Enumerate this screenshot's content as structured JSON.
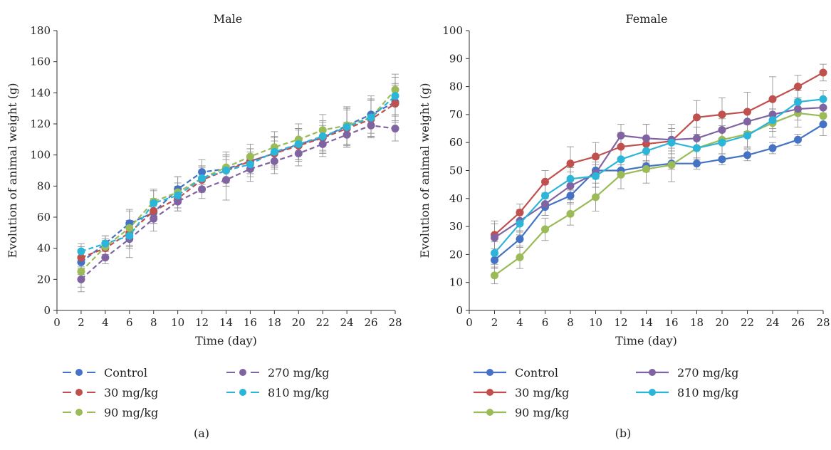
{
  "colors": {
    "Control": "#4472c4",
    "30 mg/kg": "#c0504d",
    "90 mg/kg": "#9bbb59",
    "270 mg/kg": "#8064a2",
    "810 mg/kg": "#2bb5d8"
  },
  "chart_data": [
    {
      "type": "line",
      "title": "Male",
      "xlabel": "Time (day)",
      "ylabel": "Evolution of animal weight (g)",
      "xlim": [
        0,
        28
      ],
      "ylim": [
        0,
        180
      ],
      "xticks": [
        0,
        2,
        4,
        6,
        8,
        10,
        12,
        14,
        16,
        18,
        20,
        22,
        24,
        26,
        28
      ],
      "yticks": [
        0,
        20,
        40,
        60,
        80,
        100,
        120,
        140,
        160,
        180
      ],
      "line_style": "dashed",
      "error_bars": true,
      "legend_position": "bottom",
      "panel_label": "(a)",
      "x": [
        2,
        4,
        6,
        8,
        10,
        12,
        14,
        16,
        18,
        20,
        22,
        24,
        26,
        28
      ],
      "series": [
        {
          "name": "Control",
          "values": [
            31,
            43,
            56,
            63,
            78,
            89,
            91,
            96,
            101,
            107,
            111,
            119,
            126,
            134
          ],
          "errors": [
            8,
            5,
            8,
            7,
            8,
            8,
            8,
            8,
            8,
            10,
            8,
            12,
            12,
            12
          ]
        },
        {
          "name": "30 mg/kg",
          "values": [
            34,
            40,
            50,
            64,
            72,
            84,
            90,
            96,
            101,
            106,
            111,
            117,
            123,
            133
          ],
          "errors": [
            7,
            5,
            8,
            8,
            8,
            8,
            10,
            8,
            10,
            10,
            10,
            12,
            12,
            12
          ]
        },
        {
          "name": "90 mg/kg",
          "values": [
            25,
            41,
            53,
            70,
            76,
            85,
            92,
            99,
            105,
            110,
            116,
            119,
            124,
            142
          ],
          "errors": [
            10,
            5,
            12,
            8,
            10,
            8,
            10,
            8,
            10,
            10,
            10,
            12,
            12,
            10
          ]
        },
        {
          "name": "270 mg/kg",
          "values": [
            20,
            34,
            46,
            59,
            70,
            78,
            84,
            91,
            96,
            101,
            107,
            113,
            119,
            117
          ],
          "errors": [
            8,
            4,
            12,
            8,
            6,
            6,
            13,
            8,
            8,
            8,
            8,
            8,
            8,
            8
          ]
        },
        {
          "name": "810 mg/kg",
          "values": [
            38,
            43,
            48,
            69,
            74,
            85,
            90,
            94,
            102,
            107,
            112,
            118,
            124,
            138
          ],
          "errors": [
            5,
            5,
            8,
            8,
            8,
            8,
            10,
            8,
            10,
            10,
            10,
            12,
            12,
            12
          ]
        }
      ]
    },
    {
      "type": "line",
      "title": "Female",
      "xlabel": "Time (day)",
      "ylabel": "Evolution of animal weight (g)",
      "xlim": [
        0,
        28
      ],
      "ylim": [
        0,
        100
      ],
      "xticks": [
        0,
        2,
        4,
        6,
        8,
        10,
        12,
        14,
        16,
        18,
        20,
        22,
        24,
        26,
        28
      ],
      "yticks": [
        0,
        10,
        20,
        30,
        40,
        50,
        60,
        70,
        80,
        90,
        100
      ],
      "line_style": "solid",
      "error_bars": true,
      "legend_position": "bottom",
      "panel_label": "(b)",
      "x": [
        2,
        4,
        6,
        8,
        10,
        12,
        14,
        16,
        18,
        20,
        22,
        24,
        26,
        28
      ],
      "series": [
        {
          "name": "Control",
          "values": [
            18,
            25.5,
            37,
            41,
            50,
            50,
            51.5,
            52.5,
            52.5,
            54,
            55.5,
            58,
            61,
            66.5
          ],
          "errors": [
            3,
            3,
            3,
            3,
            3,
            2,
            2,
            2,
            2,
            2,
            2,
            2,
            2,
            4
          ]
        },
        {
          "name": "30 mg/kg",
          "values": [
            27,
            35,
            46,
            52.5,
            55,
            58.5,
            59.5,
            60.5,
            69,
            70,
            71,
            75.5,
            80,
            85
          ],
          "errors": [
            5,
            3,
            4,
            6,
            5,
            5,
            7,
            6,
            6,
            6,
            7,
            8,
            4,
            3
          ]
        },
        {
          "name": "90 mg/kg",
          "values": [
            12.5,
            19,
            29,
            34.5,
            40.5,
            48.5,
            50.5,
            52,
            58,
            61,
            63,
            67,
            70.5,
            69.5
          ],
          "errors": [
            3,
            4,
            4,
            4,
            5,
            5,
            5,
            6,
            5,
            5,
            5,
            5,
            5,
            3
          ]
        },
        {
          "name": "270 mg/kg",
          "values": [
            26,
            32,
            38,
            44.5,
            49,
            62.5,
            61.5,
            61,
            61.5,
            64.5,
            67.5,
            70,
            72,
            72.5
          ],
          "errors": [
            5,
            4,
            4,
            5,
            5,
            4,
            5,
            4,
            4,
            4,
            4,
            5,
            4,
            3
          ]
        },
        {
          "name": "810 mg/kg",
          "values": [
            20.5,
            31,
            41,
            47,
            48,
            54,
            57,
            60,
            58,
            60,
            62.5,
            68,
            74.5,
            75.5
          ],
          "errors": [
            4,
            4,
            4,
            4,
            4,
            4,
            4,
            4,
            4,
            4,
            4,
            4,
            4,
            3
          ]
        }
      ]
    }
  ]
}
